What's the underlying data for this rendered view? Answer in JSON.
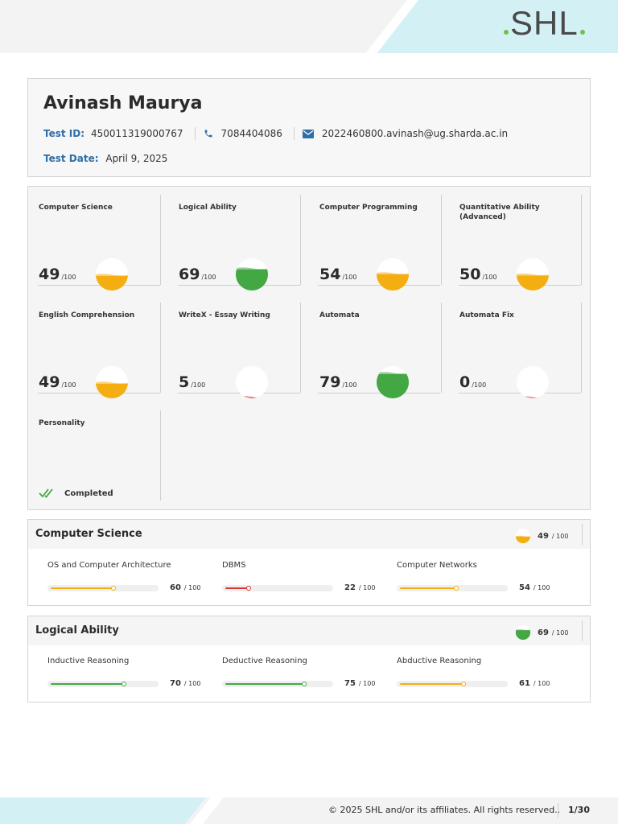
{
  "brand": {
    "name": "SHL"
  },
  "candidate": {
    "name": "Avinash Maurya",
    "test_id_label": "Test ID:",
    "test_id": "450011319000767",
    "phone": "7084404086",
    "email": "2022460800.avinash@ug.sharda.ac.in",
    "test_date_label": "Test Date:",
    "test_date": "April 9, 2025"
  },
  "score_denominator": "/100",
  "colors": {
    "high": "#43a843",
    "mid": "#f5ae12",
    "low": "#e0372f",
    "accent": "#2e6fa7"
  },
  "modules": [
    {
      "name": "Computer Science",
      "score": 49,
      "level": "mid"
    },
    {
      "name": "Logical Ability",
      "score": 69,
      "level": "high"
    },
    {
      "name": "Computer Programming",
      "score": 54,
      "level": "mid"
    },
    {
      "name": "Quantitative Ability (Advanced)",
      "score": 50,
      "level": "mid"
    },
    {
      "name": "English Comprehension",
      "score": 49,
      "level": "mid"
    },
    {
      "name": "WriteX - Essay Writing",
      "score": 5,
      "level": "low"
    },
    {
      "name": "Automata",
      "score": 79,
      "level": "high"
    },
    {
      "name": "Automata Fix",
      "score": 0,
      "level": "low"
    }
  ],
  "personality": {
    "name": "Personality",
    "status": "Completed"
  },
  "sections": [
    {
      "title": "Computer Science",
      "score": 49,
      "level": "mid",
      "denominator": "/ 100",
      "subs": [
        {
          "name": "OS and Computer Architecture",
          "score": 60,
          "level": "mid"
        },
        {
          "name": "DBMS",
          "score": 22,
          "level": "low"
        },
        {
          "name": "Computer Networks",
          "score": 54,
          "level": "mid"
        }
      ]
    },
    {
      "title": "Logical Ability",
      "score": 69,
      "level": "high",
      "denominator": "/ 100",
      "subs": [
        {
          "name": "Inductive Reasoning",
          "score": 70,
          "level": "high"
        },
        {
          "name": "Deductive Reasoning",
          "score": 75,
          "level": "high"
        },
        {
          "name": "Abductive Reasoning",
          "score": 61,
          "level": "mid"
        }
      ]
    }
  ],
  "footer": {
    "copyright": "© 2025 SHL and/or its affiliates. All rights reserved..",
    "page": "1/30"
  }
}
